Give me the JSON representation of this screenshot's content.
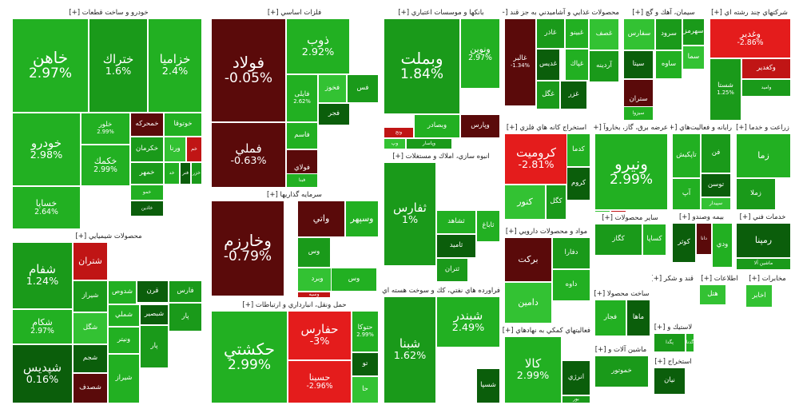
{
  "colors": {
    "dark_green": "#0b5e0b",
    "green": "#1a9a1a",
    "bright_green": "#22b022",
    "light_green": "#33c233",
    "dark_red": "#5a0a0a",
    "red": "#c01515",
    "bright_red": "#e41c1c"
  },
  "chart_data": {
    "type": "treemap",
    "sectors": [
      {
        "title": "خودرو و ساخت قطعات [+]",
        "tiles": [
          {
            "name": "خاهن",
            "value": "2.97%"
          },
          {
            "name": "ختراك",
            "value": "1.6%"
          },
          {
            "name": "خزاميا",
            "value": "2.4%"
          },
          {
            "name": "خودرو",
            "value": "2.98%"
          },
          {
            "name": "خساپا",
            "value": "2.64%"
          },
          {
            "name": "خلور",
            "value": "2.99%"
          },
          {
            "name": "خكمك",
            "value": "2.99%"
          },
          {
            "name": "خمحركه"
          },
          {
            "name": "خوتوقا"
          },
          {
            "name": "خكرمان"
          },
          {
            "name": "ورنا"
          },
          {
            "name": "خم"
          },
          {
            "name": "خمهر"
          },
          {
            "name": "خد"
          },
          {
            "name": "فنر"
          },
          {
            "name": "خزر"
          },
          {
            "name": "خمو"
          },
          {
            "name": "خاذين"
          }
        ]
      },
      {
        "title": "محصولات شيميايي [+]",
        "tiles": [
          {
            "name": "شفام",
            "value": "1.24%"
          },
          {
            "name": "پترول",
            "value": "0.38%"
          },
          {
            "name": "شكام",
            "value": "2.97%"
          },
          {
            "name": "شپدیس",
            "value": "0.16%"
          },
          {
            "name": "شتران"
          },
          {
            "name": "شیراز"
          },
          {
            "name": "شدوص"
          },
          {
            "name": "قرن"
          },
          {
            "name": "فارس"
          },
          {
            "name": "شملي"
          },
          {
            "name": "شبصير"
          },
          {
            "name": "شگل"
          },
          {
            "name": "پار"
          },
          {
            "name": "ونيتر"
          },
          {
            "name": "شجم"
          },
          {
            "name": "شصدف"
          },
          {
            "name": "شيراز"
          },
          {
            "name": "پار"
          }
        ]
      },
      {
        "title": "فلزات اساسي [+]",
        "tiles": [
          {
            "name": "فولاد",
            "value": "-0.05%"
          },
          {
            "name": "ذوب",
            "value": "2.92%"
          },
          {
            "name": "فملي",
            "value": "-0.63%"
          },
          {
            "name": "فايلی",
            "value": "2.62%"
          },
          {
            "name": "فخوز"
          },
          {
            "name": "فس"
          },
          {
            "name": "فاسم"
          },
          {
            "name": "فجر"
          },
          {
            "name": "فولاي"
          },
          {
            "name": "فبنا"
          }
        ]
      },
      {
        "title": "سرمايه گذاريها [+]",
        "tiles": [
          {
            "name": "وخارزم",
            "value": "-0.79%"
          },
          {
            "name": "واتي"
          },
          {
            "name": "وسپهر"
          },
          {
            "name": "وس"
          },
          {
            "name": "وبرد"
          },
          {
            "name": "وسيه"
          },
          {
            "name": "وساپا"
          },
          {
            "name": "وس"
          }
        ]
      },
      {
        "title": "حمل ونقل، انبارداري و ارتباطات [+]",
        "tiles": [
          {
            "name": "حكشتي",
            "value": "2.99%"
          },
          {
            "name": "حفارس",
            "value": "-3%"
          },
          {
            "name": "حسينا",
            "value": "-2.96%"
          },
          {
            "name": "حتوكا",
            "value": "2.99%"
          },
          {
            "name": "تو"
          },
          {
            "name": "حا"
          }
        ]
      },
      {
        "title": "بانكها و موسسات اعتباري [+]",
        "tiles": [
          {
            "name": "وبملت",
            "value": "1.84%"
          },
          {
            "name": "ونوين",
            "value": "2.97%"
          },
          {
            "name": "وپارس"
          },
          {
            "name": "وبصادر"
          },
          {
            "name": "وپاسار"
          },
          {
            "name": "وپ"
          },
          {
            "name": "وتج"
          }
        ]
      },
      {
        "title": "انبوه سازي، املاك و مستغلات [+]",
        "tiles": [
          {
            "name": "ثفارس",
            "value": "1%"
          },
          {
            "name": "ثشاهد"
          },
          {
            "name": "ثامید"
          },
          {
            "name": "ثتران"
          },
          {
            "name": "ثاباغ"
          }
        ]
      },
      {
        "title": "فراورده هاي نفتي، كك و سوخت هسته اي [+]",
        "tiles": [
          {
            "name": "شبنا",
            "value": "1.62%"
          },
          {
            "name": "شبندر",
            "value": "2.49%"
          },
          {
            "name": "شسپا"
          }
        ]
      },
      {
        "title": "محصولات غذايي و آشاميدني به جز قند [+]",
        "tiles": [
          {
            "name": "غالبر",
            "value": "-1.34%"
          },
          {
            "name": "غاذر"
          },
          {
            "name": "غبينو"
          },
          {
            "name": "غديس"
          },
          {
            "name": "غگل"
          },
          {
            "name": "غپاك"
          },
          {
            "name": "غزر"
          },
          {
            "name": "غصف"
          },
          {
            "name": "آردينه"
          }
        ]
      },
      {
        "title": "سيمان، آهك و گچ [+]",
        "tiles": [
          {
            "name": "سفارس"
          },
          {
            "name": "سرود"
          },
          {
            "name": "ساوه"
          },
          {
            "name": "سيتا"
          },
          {
            "name": "ستران"
          },
          {
            "name": "سيزوا"
          },
          {
            "name": "سهرمز"
          },
          {
            "name": "سما"
          }
        ]
      },
      {
        "title": "شركتهاي چند رشته اي [+]",
        "tiles": [
          {
            "name": "وغدير",
            "value": "-2.86%"
          },
          {
            "name": "وكغدير"
          },
          {
            "name": "واميد"
          },
          {
            "name": "شستا",
            "value": "1.25%"
          }
        ]
      },
      {
        "title": "استخراج كانه هاي فلزي [+]",
        "tiles": [
          {
            "name": "كرومیت",
            "value": "-2.81%"
          },
          {
            "name": "كنور"
          },
          {
            "name": "كگل"
          },
          {
            "name": "كدما"
          },
          {
            "name": "كروم"
          }
        ]
      },
      {
        "title": "عرضه برق، گاز، بخاروآ [+]",
        "tiles": [
          {
            "name": "ونيرو",
            "value": "2.99%"
          },
          {
            "name": "بيج"
          },
          {
            "name": "بمپنا"
          }
        ]
      },
      {
        "title": "رايانه و فعاليت‌هاي [+]",
        "tiles": [
          {
            "name": "تاپكيش"
          },
          {
            "name": "توسن"
          },
          {
            "name": "سپيدار"
          },
          {
            "name": "فن"
          },
          {
            "name": "آپ"
          }
        ]
      },
      {
        "title": "زراعت و خدما [+]",
        "tiles": [
          {
            "name": "زما"
          },
          {
            "name": "زملا"
          },
          {
            "name": "زكوثر"
          }
        ]
      },
      {
        "title": "ساير محصولات [+]",
        "tiles": [
          {
            "name": "كگاز"
          },
          {
            "name": "كساپا"
          }
        ]
      },
      {
        "title": "مواد و محصولات دارويي [+]",
        "tiles": [
          {
            "name": "بركت"
          },
          {
            "name": "داوه"
          },
          {
            "name": "دفارا"
          },
          {
            "name": "دامين"
          }
        ]
      },
      {
        "title": "خدمات فني [+]",
        "tiles": [
          {
            "name": "رمپنا"
          },
          {
            "name": "ماشين آلا"
          }
        ]
      },
      {
        "title": "بيمه وصندو [+]",
        "tiles": [
          {
            "name": "كوثر"
          },
          {
            "name": "دانا"
          },
          {
            "name": "ودي"
          }
        ]
      },
      {
        "title": "فعاليتهاي كمكي به نهادهاي [+]",
        "tiles": [
          {
            "name": "كالا",
            "value": "2.99%"
          },
          {
            "name": "انرژي"
          },
          {
            "name": "بور"
          }
        ]
      },
      {
        "title": "ساخت محصولا [+]",
        "tiles": [
          {
            "name": "فجار"
          },
          {
            "name": "ماها"
          }
        ]
      },
      {
        "title": "لاستيك و [+]",
        "tiles": [
          {
            "name": "پگدا"
          },
          {
            "name": "گدنا"
          }
        ]
      },
      {
        "title": "ماشين آلات و [+]",
        "tiles": [
          {
            "name": "خموتور"
          }
        ]
      },
      {
        "title": "قند و شكر [+]",
        "tiles": []
      },
      {
        "title": "اطلاعات [+]",
        "tiles": [
          {
            "name": "هتل"
          }
        ]
      },
      {
        "title": "مخابرات [+]",
        "tiles": [
          {
            "name": "اخابر"
          }
        ]
      },
      {
        "title": "استخراج [+]",
        "tiles": [
          {
            "name": "نيان"
          }
        ]
      }
    ]
  }
}
